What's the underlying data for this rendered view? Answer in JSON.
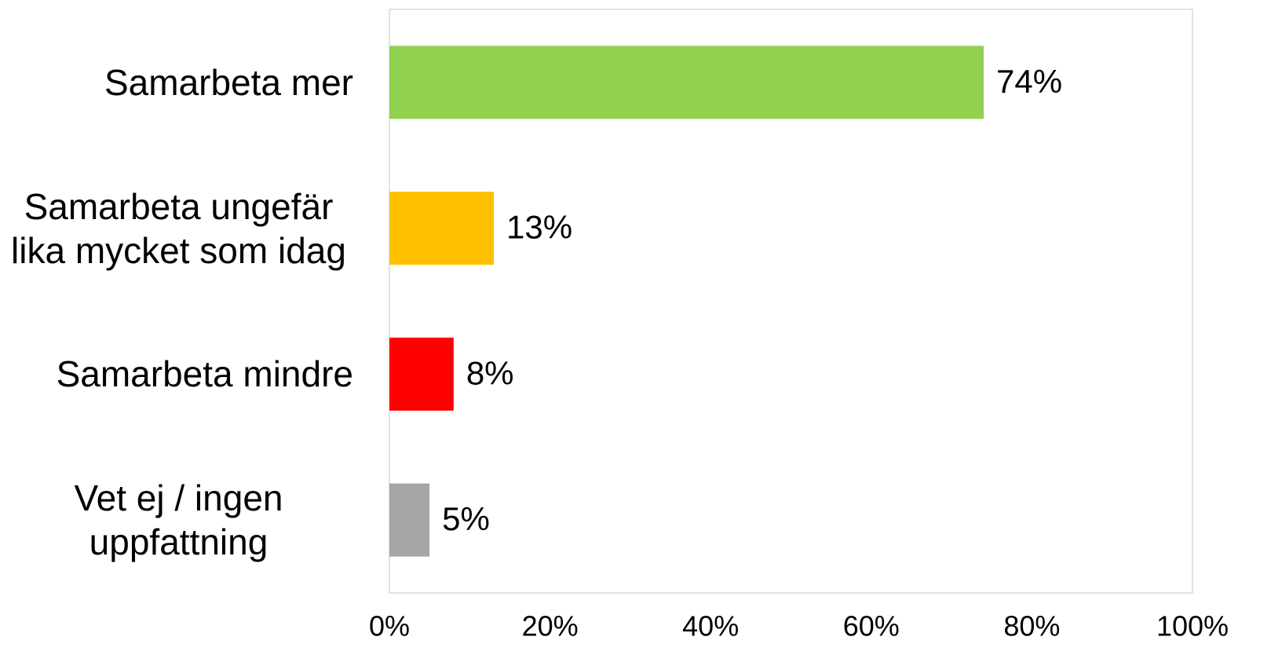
{
  "chart_data": {
    "type": "bar",
    "orientation": "horizontal",
    "categories": [
      "Samarbeta mer",
      "Samarbeta ungefär lika mycket som idag",
      "Samarbeta mindre",
      "Vet ej / ingen uppfattning"
    ],
    "values": [
      74,
      13,
      8,
      5
    ],
    "value_labels": [
      "74%",
      "13%",
      "8%",
      "5%"
    ],
    "colors": [
      "#92d050",
      "#ffc000",
      "#ff0000",
      "#a6a6a6"
    ],
    "xlim": [
      0,
      100
    ],
    "xticks": [
      {
        "value": 0,
        "label": "0%"
      },
      {
        "value": 20,
        "label": "20%"
      },
      {
        "value": 40,
        "label": "40%"
      },
      {
        "value": 60,
        "label": "60%"
      },
      {
        "value": 80,
        "label": "80%"
      },
      {
        "value": 100,
        "label": "100%"
      }
    ],
    "grid": false
  }
}
